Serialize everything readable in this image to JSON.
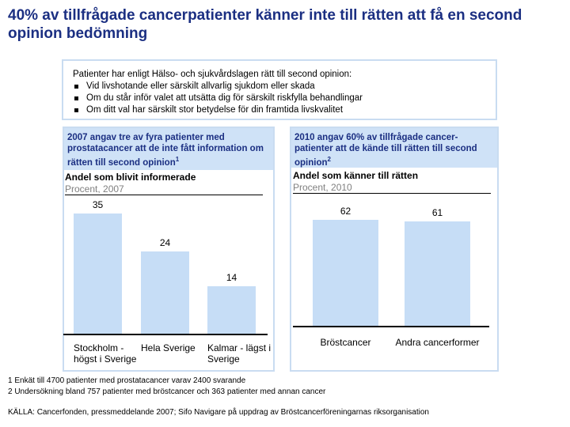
{
  "title": "40% av tillfrågade cancerpatienter känner inte till rätten att få en second opinion bedömning",
  "info_box": {
    "intro": "Patienter har enligt Hälso- och sjukvårdslagen rätt till second opinion:",
    "bullets": [
      "Vid livshotande eller särskilt allvarlig sjukdom eller skada",
      "Om du står inför valet att utsätta dig för särskilt riskfylla behandlingar",
      "Om ditt val har särskilt stor betydelse för din framtida livskvalitet"
    ]
  },
  "panels": [
    {
      "header": "2007 angav tre av fyra patienter med prostatacancer att de inte fått information om rätten till second opinion",
      "note": "1"
    },
    {
      "header": "2010 angav 60% av tillfrågade cancer-patienter att de kände till rätten till second opinion",
      "note": "2"
    }
  ],
  "chart_data": [
    {
      "type": "bar",
      "title": "Andel som blivit informerade",
      "subtitle": "Procent, 2007",
      "categories": [
        "Stockholm - högst i Sverige",
        "Hela Sverige",
        "Kalmar - lägst i Sverige"
      ],
      "values": [
        35,
        24,
        14
      ],
      "color": "#c6ddf6"
    },
    {
      "type": "bar",
      "title": "Andel som känner till rätten",
      "subtitle": "Procent, 2010",
      "categories": [
        "Bröstcancer",
        "Andra cancerformer"
      ],
      "values": [
        62,
        61
      ],
      "color": "#c6ddf6"
    }
  ],
  "footnotes": [
    "1 Enkät till 4700 patienter med prostatacancer varav 2400 svarande",
    "2 Undersökning bland 757 patienter med bröstcancer och 363 patienter med annan cancer"
  ],
  "source": "KÄLLA: Cancerfonden, pressmeddelande 2007; Sifo Navigare på uppdrag av Bröstcancerföreningarnas riksorganisation"
}
